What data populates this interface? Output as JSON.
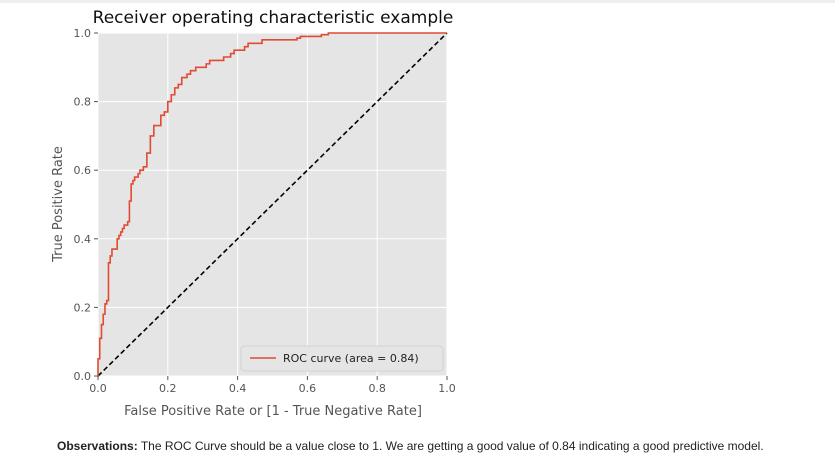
{
  "chart_data": {
    "type": "line",
    "title": "Receiver operating characteristic example",
    "xlabel": "False Positive Rate or [1 - True Negative Rate]",
    "ylabel": "True Positive Rate",
    "xlim": [
      0,
      1
    ],
    "ylim": [
      0,
      1
    ],
    "xticks": [
      "0.0",
      "0.2",
      "0.4",
      "0.6",
      "0.8",
      "1.0"
    ],
    "yticks": [
      "0.0",
      "0.2",
      "0.4",
      "0.6",
      "0.8",
      "1.0"
    ],
    "grid": true,
    "legend": "lower-right",
    "series": [
      {
        "name": "ROC curve (area = 0.84)",
        "color": "#e24a33",
        "style": "solid",
        "x": [
          0.0,
          0.0,
          0.005,
          0.005,
          0.01,
          0.01,
          0.015,
          0.015,
          0.02,
          0.02,
          0.025,
          0.025,
          0.03,
          0.03,
          0.035,
          0.035,
          0.04,
          0.04,
          0.055,
          0.055,
          0.06,
          0.06,
          0.065,
          0.065,
          0.07,
          0.07,
          0.075,
          0.075,
          0.085,
          0.085,
          0.09,
          0.09,
          0.095,
          0.095,
          0.1,
          0.1,
          0.105,
          0.105,
          0.115,
          0.115,
          0.12,
          0.12,
          0.13,
          0.13,
          0.14,
          0.14,
          0.15,
          0.15,
          0.16,
          0.16,
          0.18,
          0.18,
          0.19,
          0.19,
          0.2,
          0.2,
          0.21,
          0.21,
          0.22,
          0.22,
          0.23,
          0.23,
          0.24,
          0.24,
          0.255,
          0.255,
          0.265,
          0.265,
          0.28,
          0.28,
          0.31,
          0.31,
          0.32,
          0.32,
          0.36,
          0.36,
          0.38,
          0.38,
          0.39,
          0.39,
          0.42,
          0.42,
          0.43,
          0.43,
          0.47,
          0.47,
          0.57,
          0.57,
          0.58,
          0.58,
          0.64,
          0.64,
          0.66,
          0.66,
          0.69,
          0.69,
          0.71,
          0.71,
          0.74,
          0.74,
          0.78,
          0.78,
          0.8,
          0.8,
          0.83,
          0.83,
          0.85,
          0.85,
          1.0
        ],
        "y": [
          0.0,
          0.05,
          0.05,
          0.11,
          0.11,
          0.15,
          0.15,
          0.18,
          0.18,
          0.21,
          0.21,
          0.22,
          0.22,
          0.33,
          0.33,
          0.35,
          0.35,
          0.37,
          0.37,
          0.4,
          0.4,
          0.41,
          0.41,
          0.42,
          0.42,
          0.43,
          0.43,
          0.44,
          0.44,
          0.45,
          0.45,
          0.51,
          0.51,
          0.56,
          0.56,
          0.57,
          0.57,
          0.58,
          0.58,
          0.59,
          0.59,
          0.6,
          0.6,
          0.61,
          0.61,
          0.65,
          0.65,
          0.7,
          0.7,
          0.73,
          0.73,
          0.76,
          0.76,
          0.77,
          0.77,
          0.8,
          0.8,
          0.82,
          0.82,
          0.84,
          0.84,
          0.85,
          0.85,
          0.87,
          0.87,
          0.88,
          0.88,
          0.89,
          0.89,
          0.9,
          0.9,
          0.91,
          0.91,
          0.92,
          0.92,
          0.93,
          0.93,
          0.94,
          0.94,
          0.95,
          0.95,
          0.96,
          0.96,
          0.97,
          0.97,
          0.98,
          0.98,
          0.985,
          0.985,
          0.99,
          0.99,
          0.995,
          0.995,
          1.0,
          1.0,
          1.0,
          1.0,
          1.0,
          1.0,
          1.0,
          1.0,
          1.0,
          1.0,
          1.0,
          1.0,
          1.0,
          1.0,
          1.0,
          1.0
        ]
      },
      {
        "name": "",
        "color": "#000000",
        "style": "dashed",
        "x": [
          0,
          1
        ],
        "y": [
          0,
          1
        ]
      }
    ]
  },
  "observations": {
    "label": "Observations:",
    "text": " The ROC Curve should be a value close to 1. We are getting a good value of 0.84 indicating a good predictive model."
  }
}
